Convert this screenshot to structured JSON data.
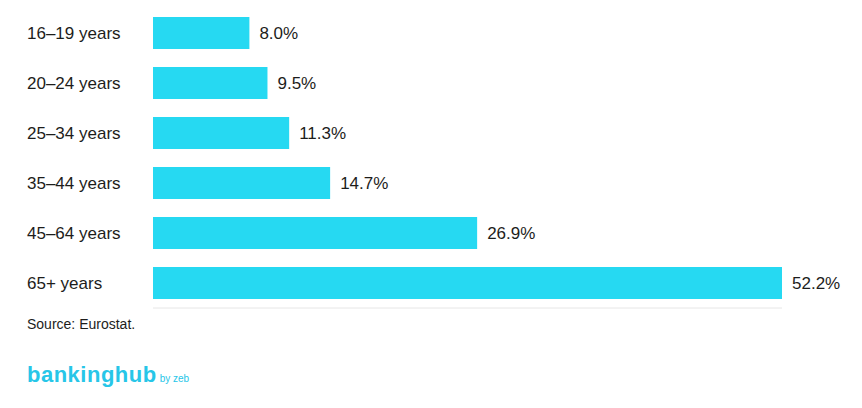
{
  "chart_data": {
    "type": "bar",
    "orientation": "horizontal",
    "categories": [
      "16–19 years",
      "20–24 years",
      "25–34 years",
      "35–44 years",
      "45–64 years",
      "65+ years"
    ],
    "values": [
      8.0,
      9.5,
      11.3,
      14.7,
      26.9,
      52.2
    ],
    "value_labels": [
      "8.0%",
      "9.5%",
      "11.3%",
      "14.7%",
      "26.9%",
      "52.2%"
    ],
    "data_labels": true,
    "color": "#26d9f2",
    "xlim": [
      0,
      52.2
    ],
    "tick_labels": "y",
    "grid": false,
    "annotations": [
      "Source: Eurostat."
    ]
  },
  "logo": {
    "text": "bankinghub",
    "suffix": "by zeb"
  }
}
